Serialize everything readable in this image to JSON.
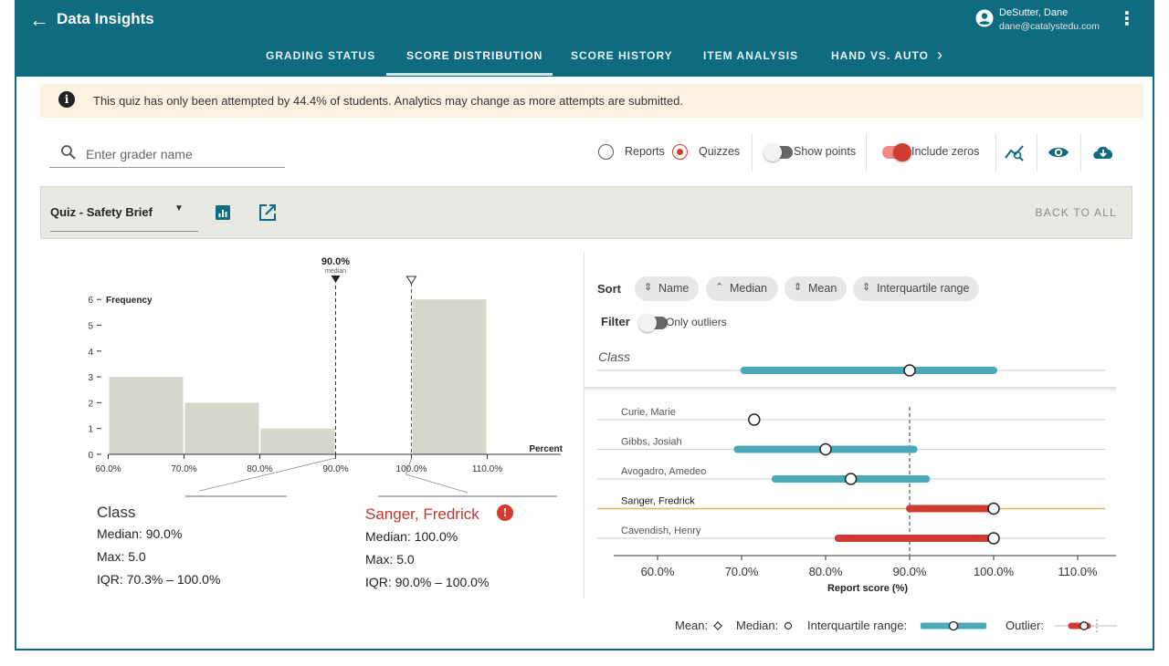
{
  "header": {
    "title": "Data Insights",
    "user_name": "DeSutter, Dane",
    "user_email": "dane@catalystedu.com",
    "tabs": [
      "GRADING STATUS",
      "SCORE DISTRIBUTION",
      "SCORE HISTORY",
      "ITEM ANALYSIS",
      "HAND VS. AUTO"
    ],
    "active_tab": "SCORE DISTRIBUTION"
  },
  "banner": {
    "text": "This quiz has only been attempted by 44.4% of students. Analytics may change as more attempts are submitted."
  },
  "search": {
    "placeholder": "Enter grader name"
  },
  "controls": {
    "radio_options": [
      "Reports",
      "Quizzes"
    ],
    "selected": "Quizzes",
    "show_points_label": "Show points",
    "show_points_on": false,
    "include_zeros_label": "Include zeros",
    "include_zeros_on": true,
    "icons": [
      "trend-icon",
      "eye-icon",
      "cloud-download-icon"
    ]
  },
  "quiz_bar": {
    "selected_quiz": "Quiz - Safety Brief",
    "back_label": "BACK TO ALL"
  },
  "histogram": {
    "ylabel": "Frequency",
    "xlabel": "Percent",
    "median_value": "90.0%",
    "median_caption": "median"
  },
  "summary": {
    "class": {
      "title": "Class",
      "median": "Median: 90.0%",
      "max": "Max: 5.0",
      "iqr": "IQR: 70.3% – 100.0%"
    },
    "student": {
      "title": "Sanger, Fredrick",
      "median": "Median: 100.0%",
      "max": "Max: 5.0",
      "iqr": "IQR: 90.0% – 100.0%"
    }
  },
  "sort": {
    "label": "Sort",
    "options": [
      {
        "label": "Name",
        "icon": "sort-icon"
      },
      {
        "label": "Median",
        "icon": "chevron-up-icon"
      },
      {
        "label": "Mean",
        "icon": "sort-icon"
      },
      {
        "label": "Interquartile range",
        "icon": "sort-icon"
      }
    ]
  },
  "filter": {
    "label": "Filter",
    "only_outliers_label": "Only outliers",
    "only_outliers_on": false
  },
  "class_row_label": "Class",
  "boxplot": {
    "xlabel": "Report score (%)"
  },
  "legend": {
    "mean": "Mean:",
    "median": "Median:",
    "iqr": "Interquartile range:",
    "outlier": "Outlier:"
  },
  "colors": {
    "teal": "#0e6b80",
    "iqr_bar": "#4aa9b6",
    "outlier": "#d13c32",
    "bar_fill": "#d6d7cb",
    "highlight_line": "#e8b15a"
  },
  "chart_data": [
    {
      "type": "bar",
      "categories": [
        "60.0%",
        "70.0%",
        "80.0%",
        "90.0%",
        "100.0%"
      ],
      "values": [
        3,
        2,
        1,
        0,
        6
      ],
      "x_ticks": [
        "60.0%",
        "70.0%",
        "80.0%",
        "90.0%",
        "100.0%",
        "110.0%"
      ],
      "y_ticks": [
        0,
        1,
        2,
        3,
        4,
        5,
        6
      ],
      "ylim": [
        0,
        6
      ],
      "ylabel": "Frequency",
      "xlabel": "Percent",
      "median": 90.0,
      "student_marker": 100.0
    },
    {
      "type": "boxplot",
      "x_ticks": [
        "60.0%",
        "70.0%",
        "80.0%",
        "90.0%",
        "100.0%",
        "110.0%"
      ],
      "xlim": [
        55,
        115
      ],
      "xlabel": "Report score (%)",
      "class_reference_median": 90.0,
      "class": {
        "name": "Class",
        "q1": 70.3,
        "q3": 100.0,
        "median": 90.0
      },
      "rows": [
        {
          "name": "Curie, Marie",
          "q1": null,
          "q3": null,
          "median": 71.5,
          "outlier": false
        },
        {
          "name": "Gibbs, Josiah",
          "q1": 69.5,
          "q3": 90.5,
          "median": 80.0,
          "outlier": false
        },
        {
          "name": "Avogadro, Amedeo",
          "q1": 74.0,
          "q3": 92.0,
          "median": 83.0,
          "outlier": false
        },
        {
          "name": "Sanger, Fredrick",
          "q1": 90.0,
          "q3": 100.0,
          "median": 100.0,
          "outlier": true,
          "highlight": true
        },
        {
          "name": "Cavendish, Henry",
          "q1": 81.5,
          "q3": 100.0,
          "median": 100.0,
          "outlier": true
        }
      ]
    }
  ]
}
